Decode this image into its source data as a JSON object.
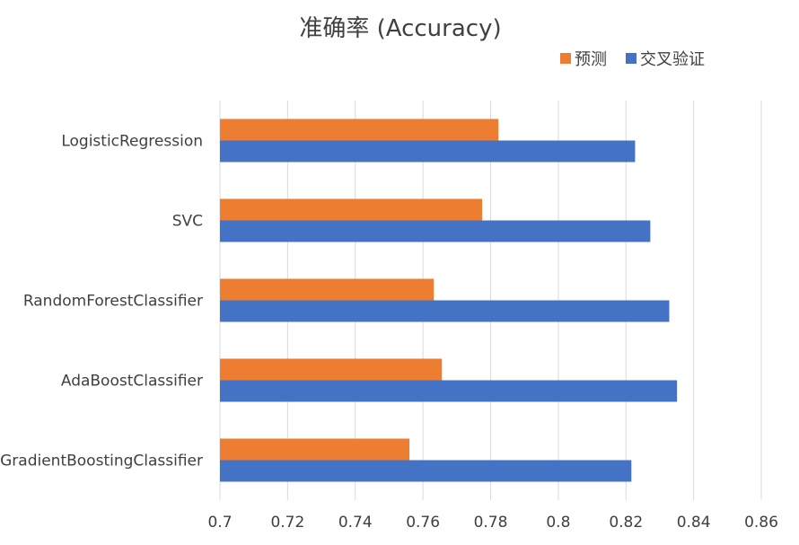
{
  "chart_data": {
    "type": "bar",
    "orientation": "horizontal",
    "title": "准确率 (Accuracy)",
    "categories": [
      "LogisticRegression",
      "SVC",
      "RandomForestClassifier",
      "AdaBoostClassifier",
      "GradientBoostingClassifier"
    ],
    "series": [
      {
        "name": "预测",
        "color": "#ED7D31",
        "values": [
          0.7823,
          0.7775,
          0.7632,
          0.7656,
          0.756
        ]
      },
      {
        "name": "交叉验证",
        "color": "#4472C4",
        "values": [
          0.8227,
          0.8272,
          0.8328,
          0.8351,
          0.8216
        ]
      }
    ],
    "xlim": [
      0.7,
      0.86
    ],
    "xticks": [
      "0.7",
      "0.72",
      "0.74",
      "0.76",
      "0.78",
      "0.8",
      "0.82",
      "0.84",
      "0.86"
    ],
    "grid": true,
    "legend_position": "top-right"
  }
}
